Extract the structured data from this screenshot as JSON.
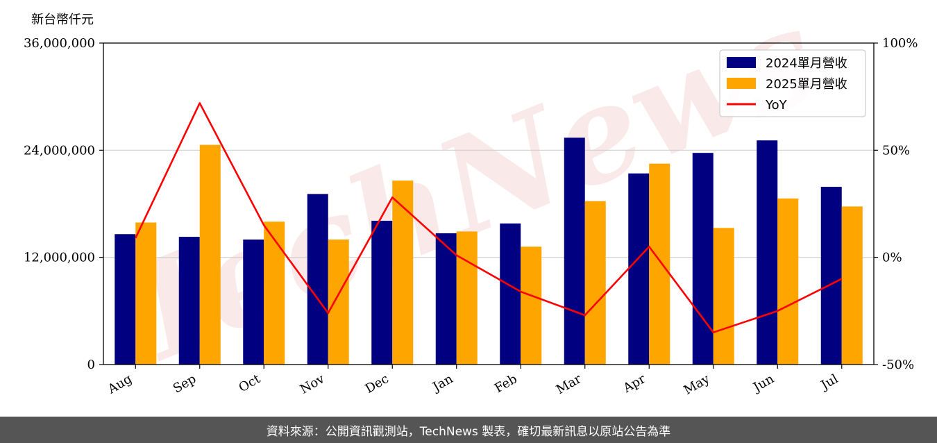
{
  "chart_data": {
    "type": "bar",
    "y_unit_label": "新台幣仟元",
    "categories": [
      "Aug",
      "Sep",
      "Oct",
      "Nov",
      "Dec",
      "Jan",
      "Feb",
      "Mar",
      "Apr",
      "May",
      "Jun",
      "Jul"
    ],
    "series": [
      {
        "name": "2024單月營收",
        "type": "bar",
        "color": "#000080",
        "values": [
          14600000,
          14300000,
          14000000,
          19100000,
          16100000,
          14700000,
          15800000,
          25400000,
          21400000,
          23700000,
          25100000,
          19900000
        ]
      },
      {
        "name": "2025單月營收",
        "type": "bar",
        "color": "#FFA500",
        "values": [
          15900000,
          24600000,
          16000000,
          14000000,
          20600000,
          14900000,
          13200000,
          18300000,
          22500000,
          15300000,
          18600000,
          17700000
        ]
      }
    ],
    "yoy_series": {
      "name": "YoY",
      "type": "line",
      "color": "#FF0000",
      "values": [
        9,
        72,
        15,
        -26,
        28,
        1,
        -16,
        -27,
        5,
        -35,
        -25,
        -10
      ]
    },
    "ylim": [
      0,
      36000000
    ],
    "yticks": [
      0,
      12000000,
      24000000,
      36000000
    ],
    "ytick_labels": [
      "0",
      "12,000,000",
      "24,000,000",
      "36,000,000"
    ],
    "y2lim": [
      -50,
      100
    ],
    "y2ticks": [
      -50,
      0,
      50,
      100
    ],
    "y2tick_labels": [
      "-50%",
      "0%",
      "50%",
      "100%"
    ],
    "grid": true,
    "legend_position": "top-right",
    "watermark": "TechNews"
  },
  "footer": {
    "source_text": "資料來源：公開資訊觀測站，TechNews 製表，確切最新訊息以原站公告為準"
  }
}
